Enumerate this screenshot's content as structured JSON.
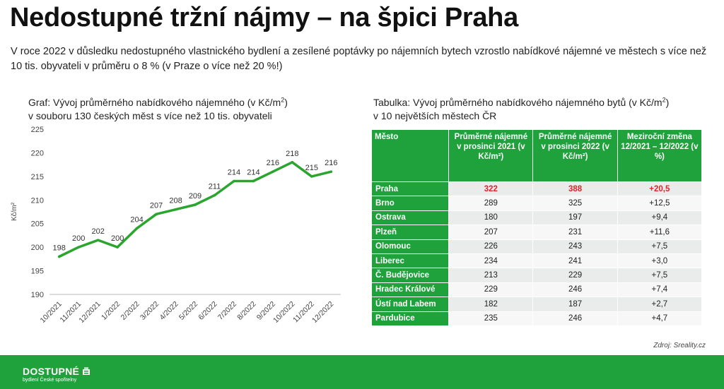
{
  "page": {
    "title": "Nedostupné tržní nájmy – na špici Praha",
    "intro": "V roce 2022 v důsledku nedostupného vlastnického bydlení a zesílené poptávky po nájemních bytech vzrostlo nabídkové nájemné ve městech s více než 10 tis. obyvateli v průměru o 8 % (v Praze o více než 20 %!)"
  },
  "chart_caption": {
    "line1": "Graf: Vývoj průměrného nabídkového nájemného (v Kč/m",
    "sup": "2",
    "line1_end": ")",
    "line2": "v souboru 130 českých měst s více než 10 tis. obyvateli"
  },
  "chart_data": {
    "type": "line",
    "title": "",
    "xlabel": "",
    "ylabel": "Kč/m²",
    "ylim": [
      190,
      225
    ],
    "yticks": [
      "190",
      "195",
      "200",
      "205",
      "210",
      "215",
      "220",
      "225"
    ],
    "grid": false,
    "color": "#2aa52e",
    "categories": [
      "10/2021",
      "11/2021",
      "12/2021",
      "1/2022",
      "2/2022",
      "3/2022",
      "4/2022",
      "5/2022",
      "6/2022",
      "7/2022",
      "8/2022",
      "9/2022",
      "10/2022",
      "11/2022",
      "12/2022"
    ],
    "values": [
      198,
      200,
      201.5,
      200,
      204,
      207,
      208,
      209,
      211,
      214,
      214,
      216,
      218,
      215,
      216
    ],
    "labels": [
      "198",
      "200",
      "202",
      "200",
      "204",
      "207",
      "208",
      "209",
      "211",
      "214",
      "214",
      "216",
      "218",
      "215",
      "216"
    ]
  },
  "table_caption": {
    "line1": "Tabulka: Vývoj průměrného nabídkového nájemného bytů (v Kč/m",
    "sup": "2",
    "line1_end": ")",
    "line2": "v 10 největších městech ČR"
  },
  "table": {
    "headers": [
      "Město",
      "Průměrné nájemné v prosinci 2021 (v Kč/m²)",
      "Průměrné nájemné v prosinci 2022 (v Kč/m²)",
      "Meziroční změna 12/2021 – 12/2022 (v %)"
    ],
    "rows": [
      [
        "Praha",
        "322",
        "388",
        "+20,5"
      ],
      [
        "Brno",
        "289",
        "325",
        "+12,5"
      ],
      [
        "Ostrava",
        "180",
        "197",
        "+9,4"
      ],
      [
        "Plzeň",
        "207",
        "231",
        "+11,6"
      ],
      [
        "Olomouc",
        "226",
        "243",
        "+7,5"
      ],
      [
        "Liberec",
        "234",
        "241",
        "+3,0"
      ],
      [
        "Č. Budějovice",
        "213",
        "229",
        "+7,5"
      ],
      [
        "Hradec Králové",
        "229",
        "246",
        "+7,4"
      ],
      [
        "Ústí nad Labem",
        "182",
        "187",
        "+2,7"
      ],
      [
        "Pardubice",
        "235",
        "246",
        "+4,7"
      ]
    ],
    "highlight_row": 0,
    "highlight_color": "#e8202a",
    "header_color": "#1fa23c"
  },
  "source": "Zdroj: Sreality.cz",
  "footer": {
    "brand": "DOSTUPNÉ",
    "tagline": "bydlení České spořitelny",
    "color": "#1fa23c"
  }
}
